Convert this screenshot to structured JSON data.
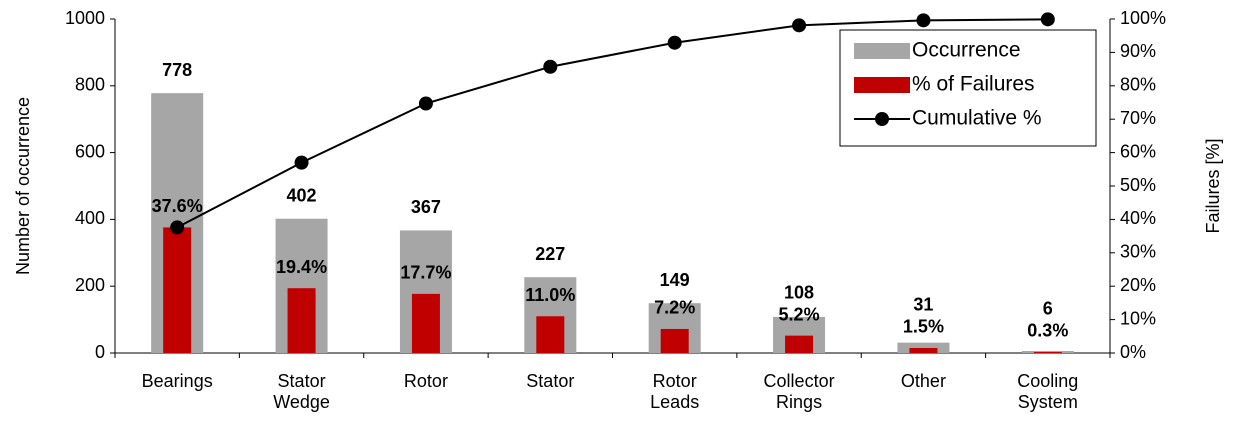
{
  "chart_data": {
    "type": "pareto",
    "categories": [
      "Bearings",
      "Stator Wedge",
      "Rotor",
      "Stator",
      "Rotor Leads",
      "Collector Rings",
      "Other",
      "Cooling System"
    ],
    "series": [
      {
        "name": "Occurrence",
        "color": "#a6a6a6",
        "type": "bar",
        "values": [
          778,
          402,
          367,
          227,
          149,
          108,
          31,
          6
        ]
      },
      {
        "name": "% of Failures",
        "color": "#c00000",
        "type": "bar",
        "axis": "y2",
        "values": [
          37.6,
          19.4,
          17.7,
          11.0,
          7.2,
          5.2,
          1.5,
          0.3
        ],
        "value_labels": [
          "37.6%",
          "19.4%",
          "17.7%",
          "11.0%",
          "7.2%",
          "5.2%",
          "1.5%",
          "0.3%"
        ]
      },
      {
        "name": "Cumulative %",
        "color": "#000000",
        "type": "line",
        "axis": "y2",
        "values": [
          37.6,
          57.0,
          74.7,
          85.7,
          92.9,
          98.1,
          99.6,
          99.9
        ]
      }
    ],
    "y_label": "Number of occurrence",
    "y2_label": "Failures [%]",
    "ylim": [
      0,
      1000
    ],
    "yticks": [
      0,
      200,
      400,
      600,
      800,
      1000
    ],
    "y2lim": [
      0,
      100
    ],
    "y2ticks": [
      {
        "value": 0,
        "label": "0%"
      },
      {
        "value": 10,
        "label": "10%"
      },
      {
        "value": 20,
        "label": "20%"
      },
      {
        "value": 30,
        "label": "30%"
      },
      {
        "value": 40,
        "label": "40%"
      },
      {
        "value": 50,
        "label": "50%"
      },
      {
        "value": 60,
        "label": "60%"
      },
      {
        "value": 70,
        "label": "70%"
      },
      {
        "value": 80,
        "label": "80%"
      },
      {
        "value": 90,
        "label": "90%"
      },
      {
        "value": 100,
        "label": "100%"
      }
    ],
    "legend": "top-right",
    "grid": false
  }
}
